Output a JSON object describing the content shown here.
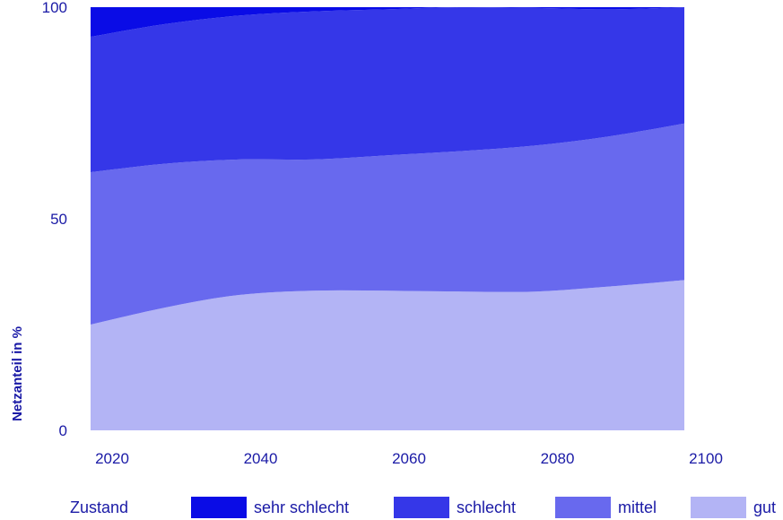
{
  "chart_data": {
    "type": "area",
    "stacked": true,
    "x": [
      2020,
      2030,
      2040,
      2050,
      2060,
      2070,
      2080,
      2090,
      2100
    ],
    "series": [
      {
        "name": "gut",
        "color": "#b3b4f5",
        "values": [
          25,
          29,
          32,
          33,
          33,
          32.8,
          32.8,
          34,
          35.5
        ]
      },
      {
        "name": "mittel",
        "color": "#6869ee",
        "values": [
          36,
          34,
          32,
          31,
          32,
          33.2,
          34.5,
          35.5,
          37
        ]
      },
      {
        "name": "schlecht",
        "color": "#3537e8",
        "values": [
          32,
          33,
          34,
          35,
          34.5,
          34,
          32.5,
          30,
          27.5
        ]
      },
      {
        "name": "sehr schlecht",
        "color": "#0a0ce6",
        "values": [
          7,
          4,
          2,
          1,
          0.5,
          0,
          0.2,
          0.5,
          0
        ]
      }
    ],
    "xlabel": "",
    "ylabel": "Netzanteil in %",
    "ylim": [
      0,
      100
    ],
    "xlim": [
      2020,
      2100
    ],
    "yticks": [
      0,
      50,
      100
    ],
    "xticks": [
      2020,
      2040,
      2060,
      2080,
      2100
    ],
    "legend_title": "Zustand",
    "legend_position": "bottom",
    "grid": false
  },
  "legend": {
    "title": "Zustand",
    "items": [
      {
        "label": "sehr schlecht",
        "color": "#0a0ce6"
      },
      {
        "label": "schlecht",
        "color": "#3537e8"
      },
      {
        "label": "mittel",
        "color": "#6869ee"
      },
      {
        "label": "gut",
        "color": "#b3b4f5"
      }
    ]
  },
  "colors": {
    "text": "#1a1aa6"
  }
}
